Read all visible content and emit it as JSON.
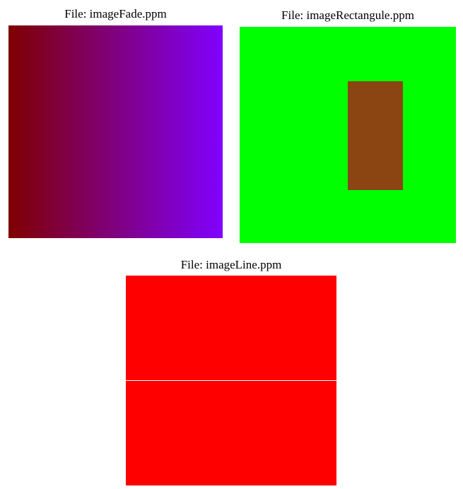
{
  "images": {
    "fade": {
      "title": "File: imageFade.ppm",
      "gradient_start": "#7f0000",
      "gradient_end": "#8000ff"
    },
    "rectangle": {
      "title": "File: imageRectangule.ppm",
      "background": "#00ff00",
      "rectangle_color": "#8b4513"
    },
    "line": {
      "title": "File: imageLine.ppm",
      "background": "#ff0000",
      "line_color": "#ffffff"
    }
  }
}
